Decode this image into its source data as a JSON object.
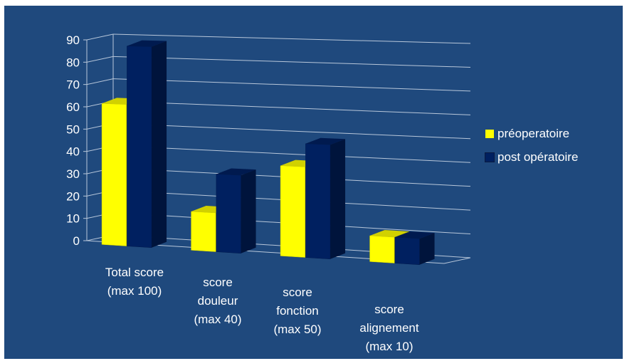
{
  "chart_data": {
    "type": "bar",
    "title": "",
    "xlabel": "",
    "ylabel": "",
    "ylim": [
      0,
      90
    ],
    "yticks": [
      0,
      10,
      20,
      30,
      40,
      50,
      60,
      70,
      80,
      90
    ],
    "categories": [
      "Total score\n(max 100)",
      "score\ndouleur\n(max 40)",
      "score\nfonction\n(max 50)",
      "score\nalignement\n(max 10)"
    ],
    "series": [
      {
        "name": "préoperatoire",
        "values": [
          63,
          17,
          39,
          11
        ]
      },
      {
        "name": "post opératoire",
        "values": [
          89,
          34,
          49,
          11
        ]
      }
    ],
    "grid": true,
    "legend_position": "right",
    "style": "3d-clustered-bar"
  },
  "colors": {
    "background": "#1F497D",
    "series": [
      "#FFFF00",
      "#002060"
    ],
    "grid": "#B8C7DA",
    "text": "#FFFFFF"
  }
}
